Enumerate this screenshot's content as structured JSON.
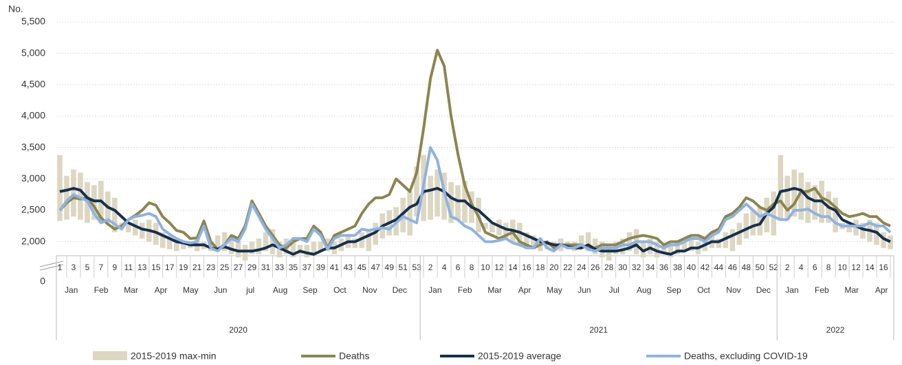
{
  "chart_data": {
    "type": "bar-line",
    "y_label": "No.",
    "ylim": [
      1700,
      5500
    ],
    "yticks": [
      0,
      {
        "value": 2000,
        "label": "2,000"
      },
      {
        "value": 2500,
        "label": "2,500"
      },
      {
        "value": 3000,
        "label": "3,000"
      },
      {
        "value": 3500,
        "label": "3,500"
      },
      {
        "value": 4000,
        "label": "4,000"
      },
      {
        "value": 4500,
        "label": "4,500"
      },
      {
        "value": 5000,
        "label": "5,000"
      },
      {
        "value": 5500,
        "label": "5,500"
      }
    ],
    "grid": true,
    "legend": "bottom",
    "categories": [
      "1",
      null,
      "3",
      null,
      "5",
      null,
      "7",
      null,
      "9",
      null,
      "11",
      null,
      "13",
      null,
      "15",
      null,
      "17",
      null,
      "19",
      null,
      "21",
      null,
      "23",
      null,
      "25",
      null,
      "27",
      null,
      "29",
      null,
      "31",
      null,
      "33",
      null,
      "35",
      null,
      "37",
      null,
      "39",
      null,
      "41",
      null,
      "43",
      null,
      "45",
      null,
      "47",
      null,
      "49",
      null,
      "51",
      null,
      "53",
      null,
      "2",
      null,
      "4",
      null,
      "6",
      null,
      "8",
      null,
      "10",
      null,
      "12",
      null,
      "14",
      null,
      "16",
      null,
      "18",
      null,
      "20",
      null,
      "22",
      null,
      "24",
      null,
      "26",
      null,
      "28",
      null,
      "30",
      null,
      "32",
      null,
      "34",
      null,
      "36",
      null,
      "38",
      null,
      "40",
      null,
      "42",
      null,
      "44",
      null,
      "46",
      null,
      "48",
      null,
      "50",
      null,
      "52",
      null,
      "2",
      null,
      "4",
      null,
      "6",
      null,
      "8",
      null,
      "10",
      null,
      "12",
      null,
      "14",
      null,
      "16",
      null
    ],
    "years": [
      {
        "label": "2020",
        "months": [
          "Jan",
          "Feb",
          "Mar",
          "Apr",
          "May",
          "Jun",
          "jul",
          "Aug",
          "Sep",
          "Oct",
          "Nov",
          "Dec"
        ]
      },
      {
        "label": "2021",
        "months": [
          "Jan",
          "Feb",
          "Mar",
          "Apr",
          "May",
          "Jun",
          "Jul",
          "Aug",
          "Sep",
          "Oct",
          "Nov",
          "Dec"
        ]
      },
      {
        "label": "2022",
        "months": [
          "Jan",
          "Feb",
          "Mar",
          "Apr"
        ]
      }
    ],
    "series": [
      {
        "name": "2015-2019 max-min",
        "kind": "range",
        "color": "#ddd6c1",
        "high": [
          3380,
          3050,
          3150,
          3100,
          2950,
          2900,
          2970,
          2800,
          2700,
          2300,
          2300,
          2350,
          2300,
          2350,
          2300,
          2150,
          2100,
          2050,
          2000,
          2000,
          2050,
          2000,
          2000,
          2100,
          2150,
          2050,
          2000,
          1950,
          2000,
          2050,
          2150,
          2200,
          2000,
          2050,
          2000,
          1950,
          1950,
          2000,
          2000,
          2050,
          2000,
          2050,
          2100,
          2050,
          2150,
          2200,
          2300,
          2450,
          2500,
          2550,
          2700,
          2800,
          3200,
          3380,
          3050,
          3150,
          3100,
          2950,
          2900,
          2970,
          2800,
          2700,
          2300,
          2300,
          2350,
          2300,
          2350,
          2300,
          2150,
          2100,
          2050,
          2000,
          2000,
          2050,
          2000,
          2000,
          2100,
          2150,
          2050,
          2000,
          1950,
          2000,
          2050,
          2150,
          2200,
          2000,
          2050,
          2000,
          1950,
          1950,
          2000,
          2000,
          2050,
          2000,
          2050,
          2100,
          2050,
          2150,
          2200,
          2300,
          2450,
          2500,
          2550,
          2700,
          2800,
          3380,
          3050,
          3150,
          3100,
          2950,
          2900,
          2970,
          2800,
          2700,
          2300,
          2300,
          2350,
          2300,
          2350,
          2300,
          2150,
          2100
        ],
        "low": [
          2330,
          2350,
          2400,
          2350,
          2300,
          2350,
          2300,
          2300,
          2150,
          2200,
          2150,
          2100,
          2050,
          2000,
          1950,
          1900,
          1880,
          1850,
          1880,
          1900,
          1850,
          1880,
          1850,
          1900,
          1850,
          1800,
          1750,
          1700,
          1800,
          1800,
          1850,
          1800,
          1750,
          1800,
          1750,
          1800,
          1750,
          1800,
          1850,
          1850,
          1800,
          1850,
          1900,
          1900,
          1900,
          1850,
          1950,
          2050,
          2100,
          2100,
          2150,
          2100,
          2400,
          2330,
          2350,
          2400,
          2350,
          2300,
          2350,
          2300,
          2300,
          2150,
          2200,
          2150,
          2100,
          2050,
          2000,
          1950,
          1900,
          1880,
          1850,
          1880,
          1900,
          1850,
          1880,
          1850,
          1900,
          1850,
          1800,
          1750,
          1700,
          1800,
          1800,
          1850,
          1800,
          1750,
          1800,
          1750,
          1800,
          1750,
          1800,
          1850,
          1850,
          1800,
          1850,
          1900,
          1900,
          1900,
          1850,
          1950,
          2050,
          2100,
          2100,
          2150,
          2100,
          2330,
          2350,
          2400,
          2350,
          2300,
          2350,
          2300,
          2300,
          2150,
          2200,
          2150,
          2100,
          2050,
          2000,
          1950,
          1900,
          1880
        ]
      },
      {
        "name": "Deaths",
        "kind": "line",
        "color": "#8c8550",
        "values": [
          2500,
          2620,
          2700,
          2680,
          2700,
          2560,
          2380,
          2280,
          2200,
          2250,
          2350,
          2420,
          2500,
          2620,
          2580,
          2400,
          2300,
          2180,
          2150,
          2050,
          2060,
          2330,
          2000,
          1880,
          1950,
          2100,
          2050,
          2250,
          2650,
          2450,
          2250,
          2100,
          1950,
          1900,
          2000,
          2050,
          2050,
          2250,
          2150,
          1900,
          2100,
          2150,
          2200,
          2250,
          2450,
          2600,
          2700,
          2700,
          2750,
          3000,
          2900,
          2800,
          3100,
          3800,
          4600,
          5050,
          4800,
          4000,
          3400,
          2900,
          2600,
          2400,
          2150,
          2100,
          2050,
          2100,
          2150,
          2000,
          1950,
          1900,
          1950,
          2000,
          1900,
          1950,
          1950,
          1950,
          1950,
          1900,
          1900,
          1950,
          1950,
          1950,
          2000,
          2050,
          2080,
          2100,
          2080,
          2050,
          1950,
          2000,
          2000,
          2050,
          2100,
          2100,
          2050,
          2150,
          2200,
          2400,
          2450,
          2550,
          2700,
          2650,
          2550,
          2500,
          2600,
          2650,
          2500,
          2600,
          2800,
          2800,
          2850,
          2700,
          2650,
          2550,
          2450,
          2400,
          2420,
          2450,
          2400,
          2400,
          2300,
          2250
        ]
      },
      {
        "name": "2015-2019 average",
        "kind": "line",
        "color": "#14304f",
        "values": [
          2800,
          2820,
          2850,
          2820,
          2700,
          2650,
          2650,
          2550,
          2500,
          2400,
          2300,
          2250,
          2200,
          2180,
          2150,
          2100,
          2050,
          2000,
          1980,
          1950,
          1950,
          1950,
          1900,
          1880,
          1920,
          1880,
          1850,
          1850,
          1850,
          1870,
          1900,
          1950,
          1900,
          1850,
          1800,
          1850,
          1820,
          1800,
          1850,
          1900,
          1900,
          1950,
          2000,
          2000,
          2050,
          2100,
          2150,
          2250,
          2300,
          2350,
          2450,
          2550,
          2600,
          2800,
          2820,
          2850,
          2800,
          2700,
          2650,
          2650,
          2550,
          2500,
          2400,
          2300,
          2250,
          2200,
          2180,
          2150,
          2100,
          2050,
          2000,
          1980,
          1950,
          1950,
          1920,
          1900,
          1900,
          1950,
          1880,
          1850,
          1850,
          1850,
          1870,
          1900,
          1950,
          1850,
          1900,
          1850,
          1820,
          1800,
          1850,
          1850,
          1900,
          1900,
          1950,
          2000,
          2000,
          2050,
          2100,
          2150,
          2200,
          2250,
          2280,
          2450,
          2550,
          2800,
          2820,
          2850,
          2820,
          2700,
          2650,
          2650,
          2550,
          2500,
          2350,
          2300,
          2250,
          2200,
          2180,
          2150,
          2050,
          2000
        ]
      },
      {
        "name": "Deaths, excluding COVID-19",
        "kind": "line",
        "color": "#8db3e2",
        "values": [
          2500,
          2650,
          2750,
          2700,
          2650,
          2450,
          2300,
          2350,
          2280,
          2200,
          2350,
          2400,
          2420,
          2450,
          2400,
          2200,
          2120,
          2050,
          2000,
          1980,
          2000,
          2250,
          1900,
          1850,
          1950,
          2050,
          2000,
          2200,
          2600,
          2400,
          2200,
          2050,
          1900,
          1950,
          2050,
          2050,
          2000,
          2200,
          2100,
          1880,
          2050,
          2100,
          2100,
          2100,
          2200,
          2180,
          2200,
          2220,
          2200,
          2300,
          2400,
          2350,
          2300,
          2900,
          3500,
          3300,
          2800,
          2400,
          2350,
          2250,
          2200,
          2100,
          2000,
          2000,
          2020,
          2050,
          1980,
          1950,
          1900,
          1900,
          2050,
          1900,
          1850,
          1950,
          1900,
          1900,
          1950,
          1880,
          1850,
          1900,
          1900,
          1900,
          1950,
          1950,
          2000,
          2000,
          2000,
          1950,
          1900,
          1950,
          1950,
          2000,
          2050,
          2050,
          2000,
          2100,
          2150,
          2350,
          2400,
          2500,
          2600,
          2500,
          2400,
          2450,
          2400,
          2350,
          2350,
          2500,
          2500,
          2520,
          2450,
          2400,
          2400,
          2300,
          2250,
          2250,
          2250,
          2250,
          2300,
          2250,
          2250,
          2150
        ]
      }
    ]
  }
}
